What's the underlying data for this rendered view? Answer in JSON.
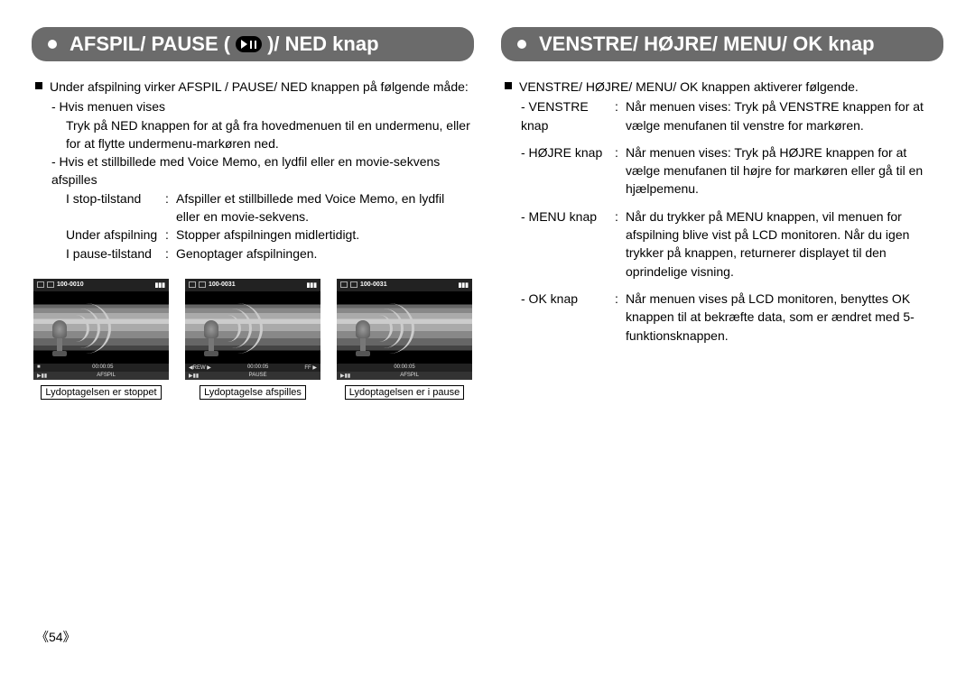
{
  "left": {
    "header_prefix": "AFSPIL/ PAUSE (",
    "header_suffix": ")/ NED knap",
    "intro": "Under afspilning virker AFSPIL / PAUSE/ NED knappen på følgende måde:",
    "sub1_title": "- Hvis menuen vises",
    "sub1_body": "Tryk på NED knappen for at gå fra hovedmenuen til en undermenu, eller for at flytte undermenu-markøren ned.",
    "sub2_title": "- Hvis et stillbillede med Voice Memo, en lydfil eller en movie-sekvens afspilles",
    "rows": [
      {
        "k": "I stop-tilstand",
        "v": "Afspiller et stillbillede med Voice Memo, en lydfil eller en movie-sekvens."
      },
      {
        "k": "Under afspilning",
        "v": "Stopper afspilningen midlertidigt."
      },
      {
        "k": "I pause-tilstand",
        "v": "Genoptager afspilningen."
      }
    ],
    "previews": [
      {
        "file": "100-0010",
        "time": "00:00:05",
        "status_left": "■",
        "status_right": "",
        "action": "AFSPIL",
        "caption": "Lydoptagelsen er stoppet"
      },
      {
        "file": "100-0031",
        "time": "00:00:05",
        "status_left": "◀REW ▶",
        "status_right": "FF ▶",
        "action": "PAUSE",
        "caption": "Lydoptagelse afspilles"
      },
      {
        "file": "100-0031",
        "time": "00:00:05",
        "status_left": "",
        "status_right": "",
        "action": "AFSPIL",
        "caption": "Lydoptagelsen er i pause"
      }
    ]
  },
  "right": {
    "header": "VENSTRE/ HØJRE/ MENU/ OK knap",
    "intro": "VENSTRE/ HØJRE/ MENU/ OK knappen aktiverer følgende.",
    "rows": [
      {
        "k": "- VENSTRE knap",
        "v": "Når menuen vises: Tryk på VENSTRE knappen for at vælge menufanen til venstre for markøren."
      },
      {
        "k": "- HØJRE knap",
        "v": "Når menuen vises: Tryk på HØJRE knappen for at vælge menufanen til højre for markøren eller gå til en hjælpemenu."
      },
      {
        "k": "- MENU knap",
        "v": "Når du trykker på MENU knappen, vil menuen for afspilning blive vist på LCD monitoren. Når du igen trykker på knappen, returnerer displayet til den oprindelige visning."
      },
      {
        "k": "- OK knap",
        "v": "Når menuen vises på LCD monitoren, benyttes OK knappen til at bekræfte data, som er ændret med 5-funktionsknappen."
      }
    ]
  },
  "page": "《54》",
  "colors": {
    "header_bg": "#6b6b6b",
    "header_fg": "#ffffff",
    "text": "#000000",
    "screen_bg": "#1a1a1a"
  }
}
